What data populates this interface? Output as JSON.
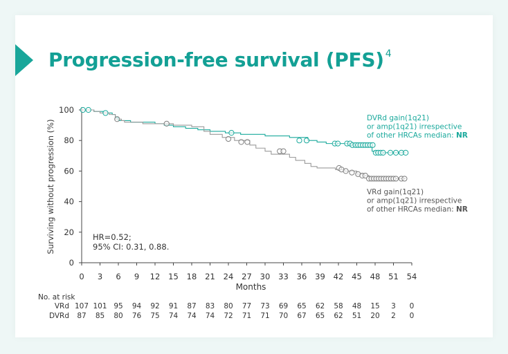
{
  "header": {
    "title": "Progression-free survival (PFS)",
    "title_superscript": "4"
  },
  "colors": {
    "accent": "#19a69a",
    "dvrd": "#1aa99c",
    "vrd": "#9a9a9a",
    "vrd_censor": "#7f7f7f"
  },
  "chart_data": {
    "type": "line",
    "xlabel": "Months",
    "ylabel": "Surviving without progression (%)",
    "xlim": [
      0,
      54
    ],
    "ylim": [
      0,
      100
    ],
    "xticks": [
      0,
      3,
      6,
      9,
      12,
      15,
      18,
      21,
      24,
      27,
      30,
      33,
      36,
      39,
      42,
      45,
      48,
      51,
      54
    ],
    "yticks": [
      0,
      20,
      40,
      60,
      80,
      100
    ],
    "annotation": {
      "line1": "HR=0.52;",
      "line2": "95% CI: 0.31, 0.88."
    },
    "series": [
      {
        "name": "DVRd",
        "label_lines": [
          "DVRd gain(1q21)",
          "or amp(1q21) irrespective",
          "of other HRCAs median: "
        ],
        "label_median": "NR",
        "points": [
          [
            0,
            100
          ],
          [
            2,
            100
          ],
          [
            2,
            99
          ],
          [
            3.5,
            99
          ],
          [
            3.5,
            98
          ],
          [
            5,
            98
          ],
          [
            5,
            97
          ],
          [
            5.5,
            97
          ],
          [
            5.5,
            95
          ],
          [
            6,
            95
          ],
          [
            6,
            93
          ],
          [
            8,
            93
          ],
          [
            8,
            92
          ],
          [
            12,
            92
          ],
          [
            12,
            91
          ],
          [
            13.5,
            91
          ],
          [
            13.5,
            90
          ],
          [
            15,
            90
          ],
          [
            15,
            89
          ],
          [
            17,
            89
          ],
          [
            17,
            88
          ],
          [
            19,
            88
          ],
          [
            19,
            87
          ],
          [
            21,
            87
          ],
          [
            21,
            86
          ],
          [
            23.5,
            86
          ],
          [
            23.5,
            85
          ],
          [
            26,
            85
          ],
          [
            26,
            84
          ],
          [
            30,
            84
          ],
          [
            30,
            83
          ],
          [
            34,
            83
          ],
          [
            34,
            82
          ],
          [
            37,
            82
          ],
          [
            37,
            80
          ],
          [
            38.5,
            80
          ],
          [
            38.5,
            79
          ],
          [
            40,
            79
          ],
          [
            40,
            78
          ],
          [
            44,
            78
          ],
          [
            44,
            77
          ],
          [
            47.5,
            77
          ],
          [
            47.5,
            73
          ],
          [
            48,
            73
          ],
          [
            48,
            72
          ],
          [
            53,
            72
          ]
        ],
        "censored": [
          [
            0.2,
            100
          ],
          [
            1.1,
            100
          ],
          [
            3.9,
            98
          ],
          [
            24.5,
            85
          ],
          [
            35.6,
            80
          ],
          [
            36.8,
            80
          ],
          [
            41.4,
            78
          ],
          [
            41.9,
            78
          ],
          [
            43.4,
            78
          ],
          [
            43.9,
            78
          ],
          [
            44.3,
            77
          ],
          [
            44.8,
            77
          ],
          [
            45.2,
            77
          ],
          [
            45.6,
            77
          ],
          [
            46,
            77
          ],
          [
            46.4,
            77
          ],
          [
            46.8,
            77
          ],
          [
            47.2,
            77
          ],
          [
            47.6,
            77
          ],
          [
            48.1,
            72
          ],
          [
            48.5,
            72
          ],
          [
            48.9,
            72
          ],
          [
            49.3,
            72
          ],
          [
            50.5,
            72
          ],
          [
            51.4,
            72
          ],
          [
            52.3,
            72
          ],
          [
            53,
            72
          ]
        ]
      },
      {
        "name": "VRd",
        "label_lines": [
          "VRd gain(1q21)",
          "or amp(1q21) irrespective",
          "of other HRCAs median: "
        ],
        "label_median": "NR",
        "points": [
          [
            0,
            100
          ],
          [
            2,
            100
          ],
          [
            2,
            99
          ],
          [
            3,
            99
          ],
          [
            3,
            98
          ],
          [
            4.5,
            98
          ],
          [
            4.5,
            97
          ],
          [
            5.5,
            97
          ],
          [
            5.5,
            94
          ],
          [
            6.5,
            94
          ],
          [
            6.5,
            93
          ],
          [
            7,
            93
          ],
          [
            7,
            92
          ],
          [
            10,
            92
          ],
          [
            10,
            91
          ],
          [
            15,
            91
          ],
          [
            15,
            90
          ],
          [
            18,
            90
          ],
          [
            18,
            89
          ],
          [
            20,
            89
          ],
          [
            20,
            86
          ],
          [
            21,
            86
          ],
          [
            21,
            84
          ],
          [
            23,
            84
          ],
          [
            23,
            82
          ],
          [
            25,
            82
          ],
          [
            25,
            80
          ],
          [
            27.5,
            80
          ],
          [
            27.5,
            77
          ],
          [
            28.5,
            77
          ],
          [
            28.5,
            75
          ],
          [
            30,
            75
          ],
          [
            30,
            73
          ],
          [
            31,
            73
          ],
          [
            31,
            71
          ],
          [
            34,
            71
          ],
          [
            34,
            69
          ],
          [
            35,
            69
          ],
          [
            35,
            67
          ],
          [
            36.5,
            67
          ],
          [
            36.5,
            65
          ],
          [
            37.5,
            65
          ],
          [
            37.5,
            63
          ],
          [
            38.5,
            63
          ],
          [
            38.5,
            62
          ],
          [
            41.5,
            62
          ],
          [
            41.5,
            61
          ],
          [
            43,
            61
          ],
          [
            43,
            60
          ],
          [
            45,
            60
          ],
          [
            45,
            58
          ],
          [
            46,
            58
          ],
          [
            46,
            57
          ],
          [
            47,
            57
          ],
          [
            47,
            55
          ],
          [
            53,
            55
          ]
        ],
        "censored": [
          [
            5.8,
            94
          ],
          [
            13.9,
            91
          ],
          [
            24,
            81
          ],
          [
            26.1,
            79
          ],
          [
            27.1,
            79
          ],
          [
            32.4,
            73
          ],
          [
            33,
            73
          ],
          [
            42.1,
            62
          ],
          [
            42.5,
            61
          ],
          [
            43.2,
            60
          ],
          [
            44.2,
            59
          ],
          [
            45.2,
            58
          ],
          [
            45.9,
            57
          ],
          [
            46.4,
            57
          ],
          [
            47,
            55
          ],
          [
            47.4,
            55
          ],
          [
            47.8,
            55
          ],
          [
            48.2,
            55
          ],
          [
            48.6,
            55
          ],
          [
            49,
            55
          ],
          [
            49.4,
            55
          ],
          [
            49.8,
            55
          ],
          [
            50.2,
            55
          ],
          [
            50.6,
            55
          ],
          [
            51,
            55
          ],
          [
            51.4,
            55
          ],
          [
            52.3,
            55
          ],
          [
            52.8,
            55
          ]
        ]
      }
    ],
    "at_risk": {
      "title": "No. at risk",
      "rows": [
        {
          "label": "VRd",
          "values": [
            "107",
            "101",
            "95",
            "94",
            "92",
            "91",
            "87",
            "83",
            "80",
            "77",
            "73",
            "69",
            "65",
            "62",
            "58",
            "48",
            "15",
            "3",
            "0"
          ]
        },
        {
          "label": "DVRd",
          "values": [
            "87",
            "85",
            "80",
            "76",
            "75",
            "74",
            "74",
            "74",
            "72",
            "71",
            "71",
            "70",
            "67",
            "65",
            "62",
            "51",
            "20",
            "2",
            "0"
          ]
        }
      ]
    }
  }
}
